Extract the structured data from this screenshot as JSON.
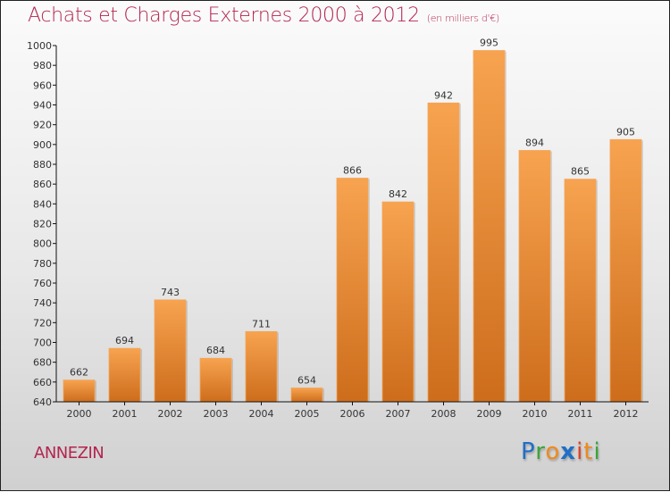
{
  "chart_data": {
    "type": "bar",
    "title": "Achats et Charges Externes 2000 à 2012",
    "subtitle": "(en milliers d'€)",
    "xlabel": "",
    "ylabel": "",
    "categories": [
      "2000",
      "2001",
      "2002",
      "2003",
      "2004",
      "2005",
      "2006",
      "2007",
      "2008",
      "2009",
      "2010",
      "2011",
      "2012"
    ],
    "values": [
      662,
      694,
      743,
      684,
      711,
      654,
      866,
      842,
      942,
      995,
      894,
      865,
      905
    ],
    "ylim": [
      640,
      1000
    ],
    "yticks": [
      640,
      660,
      680,
      700,
      720,
      740,
      760,
      780,
      800,
      820,
      840,
      860,
      880,
      900,
      920,
      940,
      960,
      980,
      1000
    ],
    "grid": false,
    "bar_color": "#e8872e",
    "data_labels": true
  },
  "footer": {
    "town": "ANNEZIN",
    "logo_letters": [
      {
        "ch": "P",
        "color": "#1f6fc7"
      },
      {
        "ch": "r",
        "color": "#3aa53a"
      },
      {
        "ch": "o",
        "color": "#f08a1c"
      },
      {
        "ch": "x",
        "color": "#1f6fc7"
      },
      {
        "ch": "i",
        "color": "#e0402a"
      },
      {
        "ch": "t",
        "color": "#f08a1c"
      },
      {
        "ch": "i",
        "color": "#3aa53a"
      }
    ]
  }
}
